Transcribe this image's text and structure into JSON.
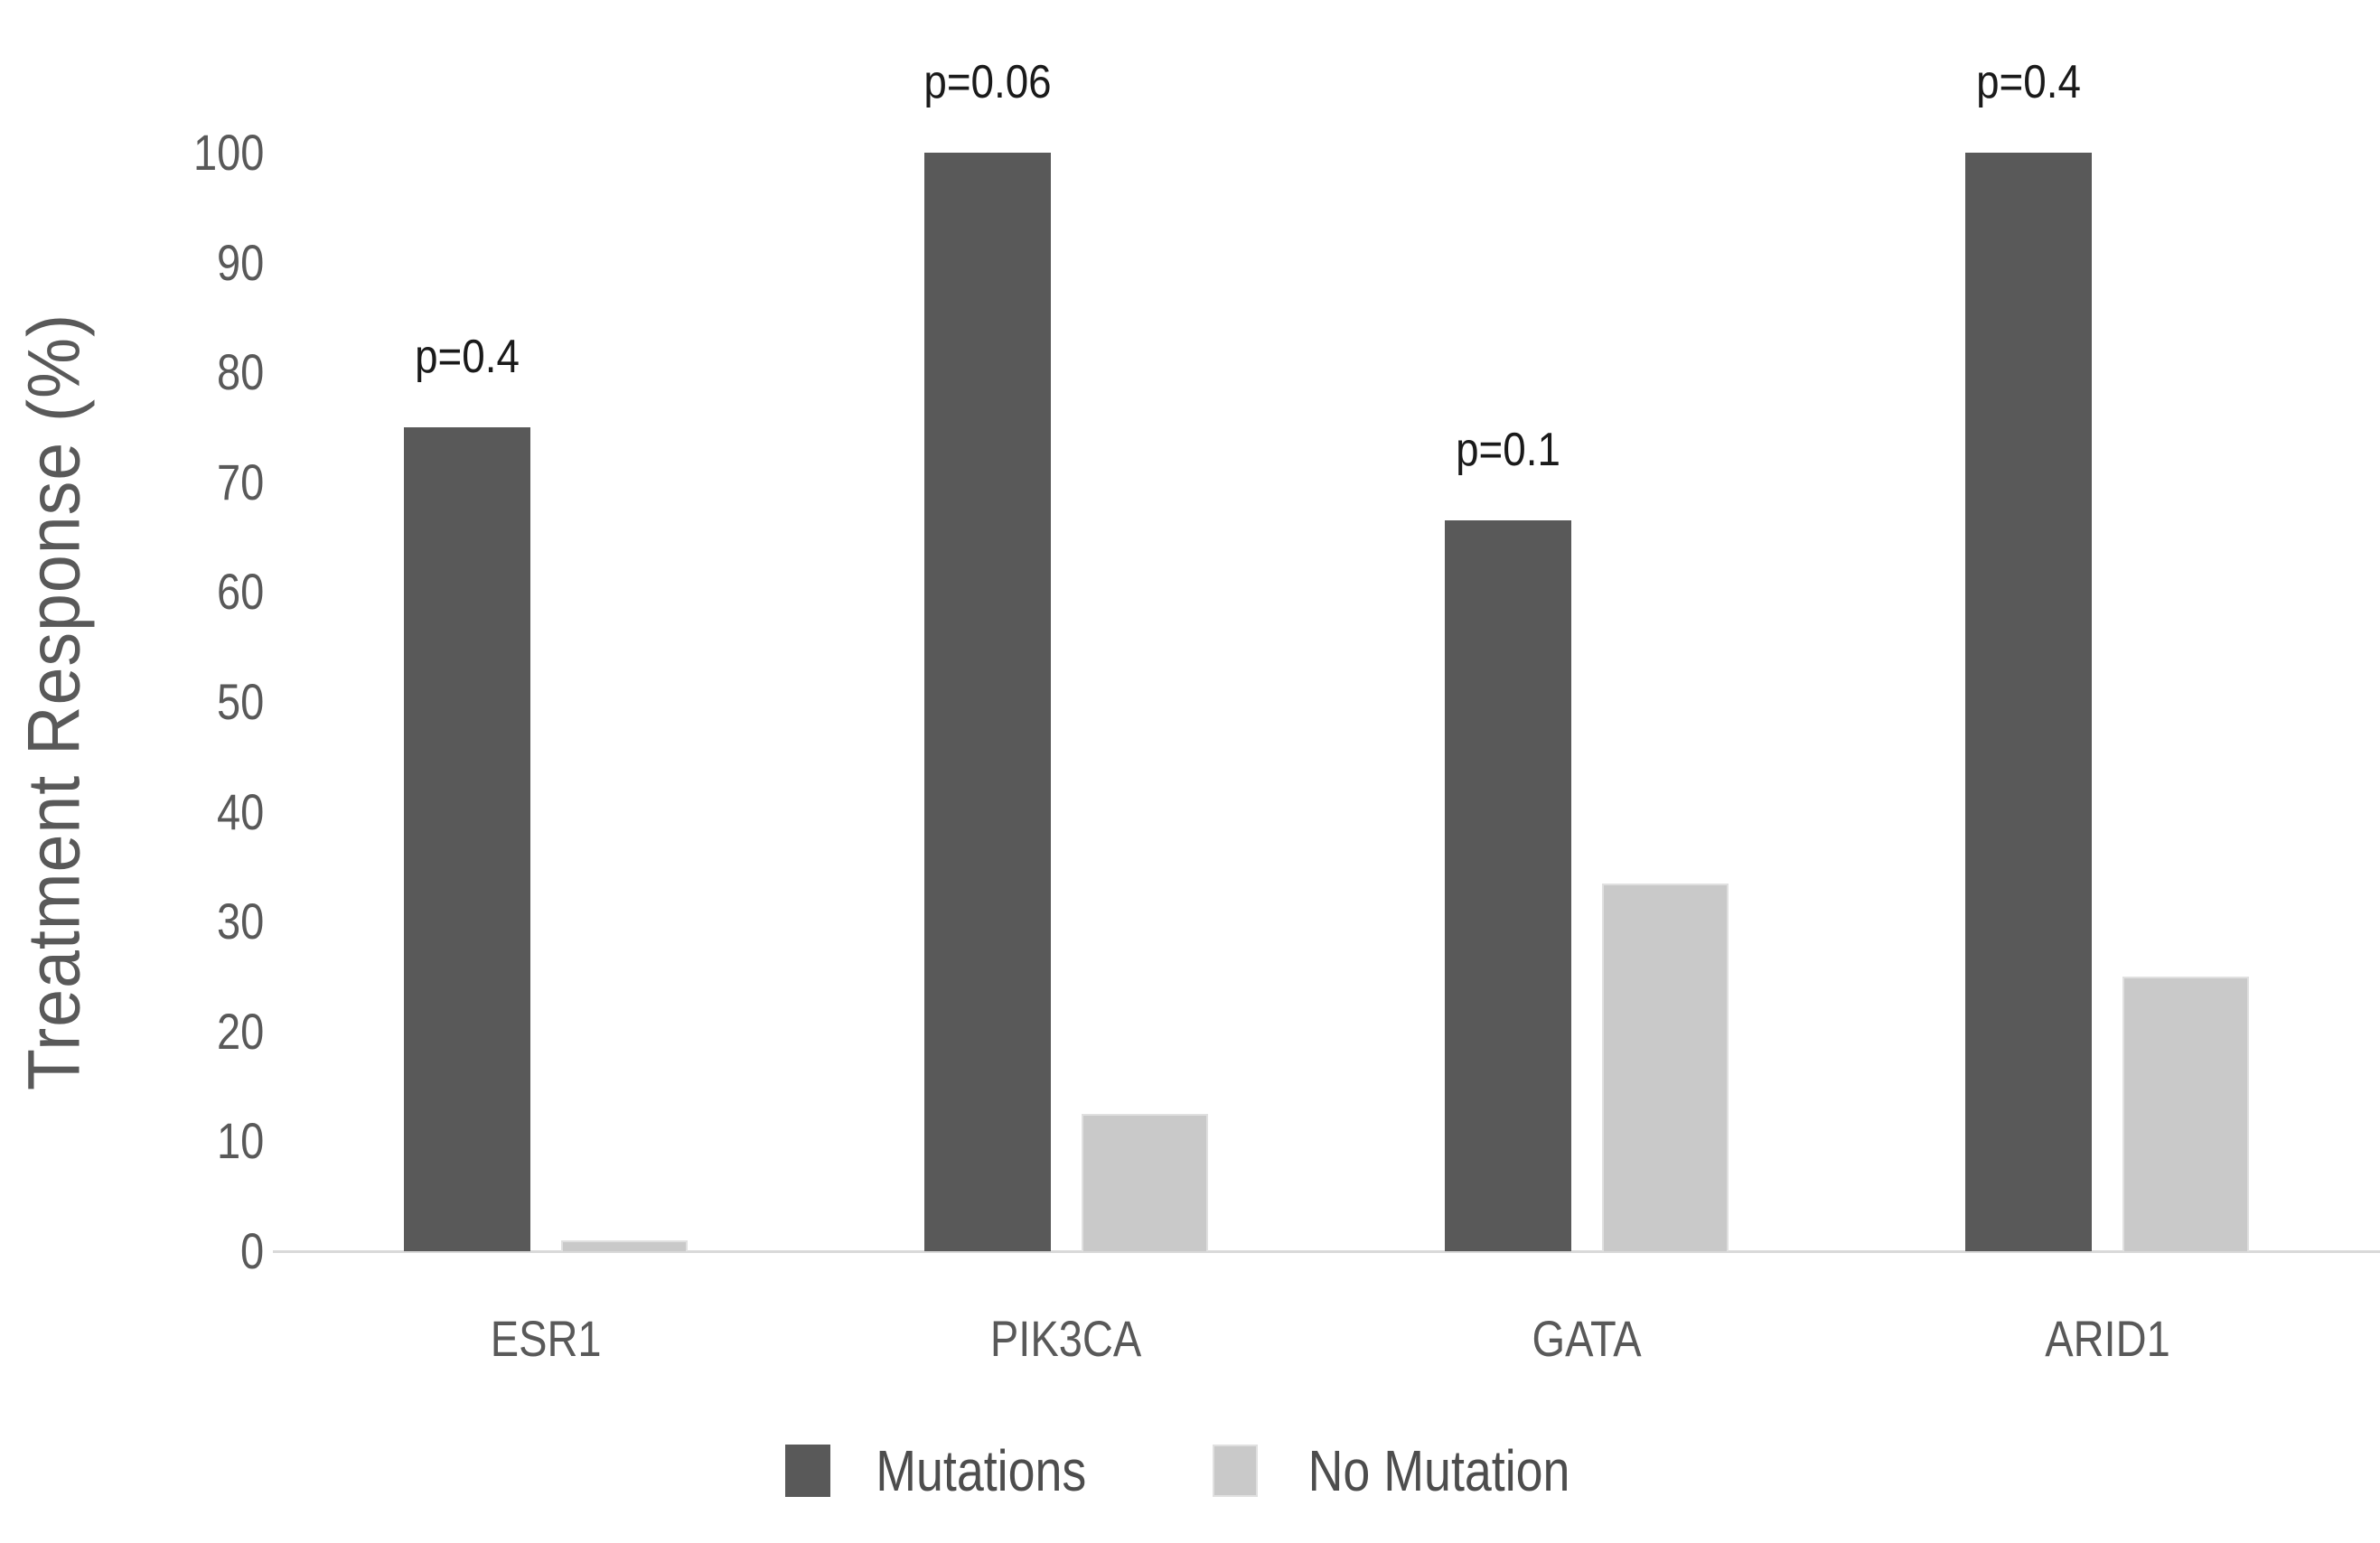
{
  "chart_data": {
    "type": "bar",
    "title": "",
    "ylabel": "Treatment Response (%)",
    "xlabel": "",
    "ylim": [
      0,
      100
    ],
    "yticks": [
      0,
      10,
      20,
      30,
      40,
      50,
      60,
      70,
      80,
      90,
      100
    ],
    "grid": false,
    "legend_position": "bottom",
    "categories": [
      "ESR1",
      "PIK3CA",
      "GATA",
      "ARID1"
    ],
    "series": [
      {
        "name": "Mutations",
        "color": "#595959",
        "values": [
          75,
          100,
          66.5,
          100
        ]
      },
      {
        "name": "No Mutation",
        "color": "#c9c9c9",
        "values": [
          1,
          12.5,
          33.5,
          25
        ]
      }
    ],
    "annotations": [
      {
        "category": "ESR1",
        "series": "Mutations",
        "text": "p=0.4"
      },
      {
        "category": "PIK3CA",
        "series": "Mutations",
        "text": "p=0.06"
      },
      {
        "category": "GATA",
        "series": "Mutations",
        "text": "p=0.1"
      },
      {
        "category": "ARID1",
        "series": "Mutations",
        "text": "p=0.4"
      }
    ]
  },
  "colors": {
    "background": "#ffffff",
    "axis_line": "#d9d9d9",
    "tick_label": "#595959",
    "category_label": "#595959",
    "axis_title": "#595959",
    "annotation": "#1a1a1a",
    "legend_text": "#4d4d4d",
    "bar_dark": "#595959",
    "bar_light": "#c9c9c9",
    "bar_light_border": "#e0e0e0"
  }
}
